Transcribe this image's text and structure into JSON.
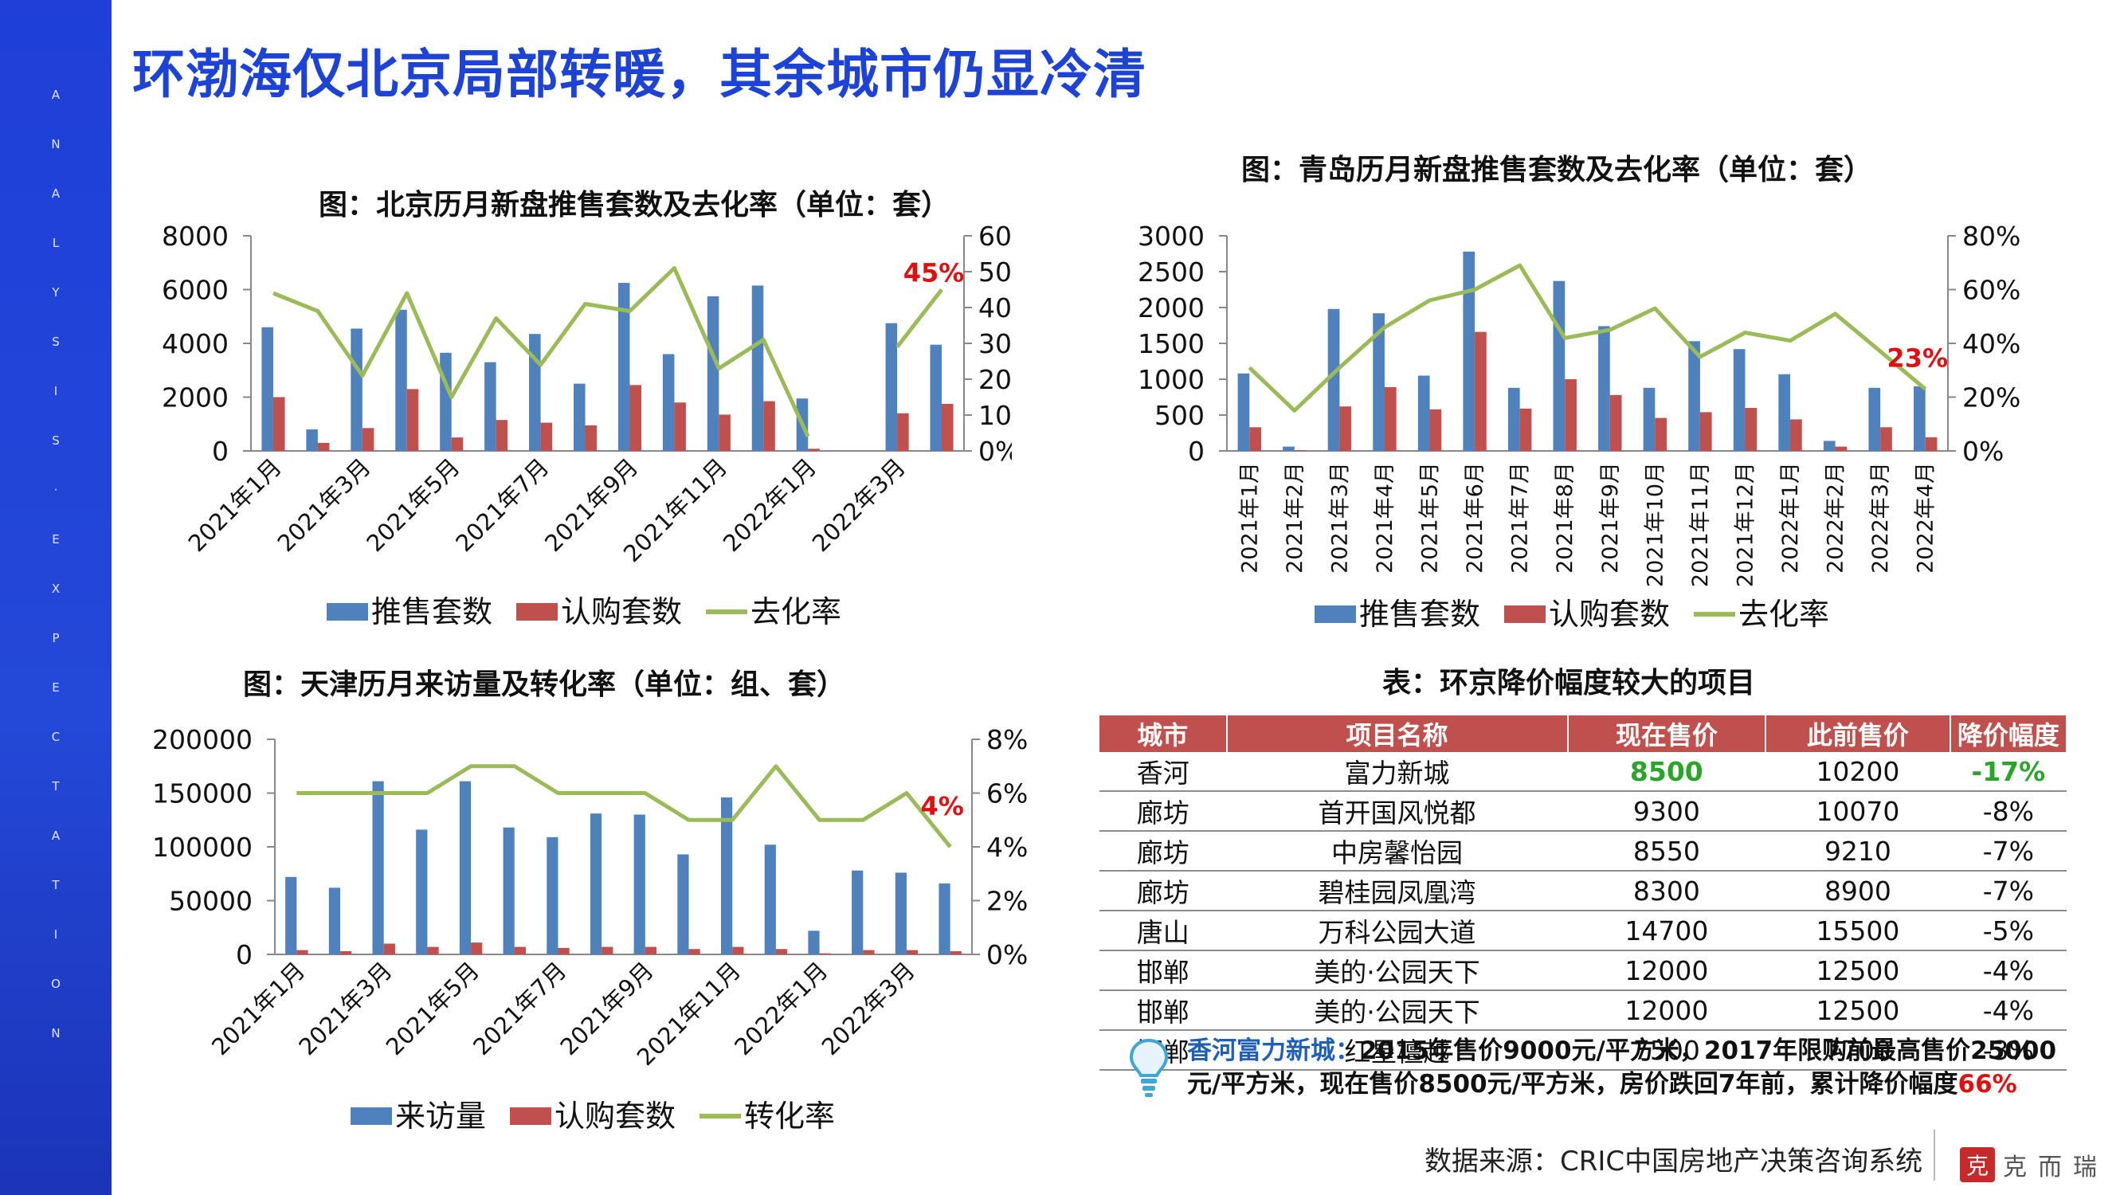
{
  "page": {
    "title": "环渤海仅北京局部转暖，其余城市仍显冷清",
    "side_letters": [
      "A",
      "N",
      "A",
      "L",
      "Y",
      "S",
      "I",
      "S",
      "·",
      "E",
      "X",
      "P",
      "E",
      "C",
      "T",
      "A",
      "T",
      "I",
      "O",
      "N"
    ],
    "source": "数据来源：CRIC中国房地产决策咨询系统",
    "logo_seal": "克",
    "logo_text": "克而瑞"
  },
  "colors": {
    "bar_blue": "#4f81bd",
    "bar_red": "#c0504d",
    "line_green": "#9bbb59",
    "title_blue": "#1d43d6",
    "highlight_red": "#e01010"
  },
  "chart_data": [
    {
      "id": "beijing",
      "type": "bar",
      "title": "图：北京历月新盘推售套数及去化率（单位：套）",
      "categories": [
        "2021年1月",
        "2021年2月",
        "2021年3月",
        "2021年4月",
        "2021年5月",
        "2021年6月",
        "2021年7月",
        "2021年8月",
        "2021年9月",
        "2021年10月",
        "2021年11月",
        "2021年12月",
        "2022年1月",
        "2022年2月",
        "2022年3月",
        "2022年4月"
      ],
      "tick_labels": [
        "2021年1月",
        "",
        "2021年3月",
        "",
        "2021年5月",
        "",
        "2021年7月",
        "",
        "2021年9月",
        "",
        "2021年11月",
        "",
        "2022年1月",
        "",
        "2022年3月",
        ""
      ],
      "series": [
        {
          "name": "推售套数",
          "axis": "left",
          "values": [
            4600,
            800,
            4550,
            5250,
            3650,
            3300,
            4350,
            2500,
            6250,
            3600,
            5750,
            6150,
            1950,
            0,
            4750,
            3950
          ]
        },
        {
          "name": "认购套数",
          "axis": "left",
          "values": [
            2000,
            300,
            850,
            2300,
            500,
            1150,
            1050,
            950,
            2450,
            1800,
            1350,
            1850,
            80,
            0,
            1400,
            1750
          ]
        },
        {
          "name": "去化率",
          "axis": "right",
          "type": "line",
          "values": [
            44,
            39,
            21,
            44,
            15,
            37,
            24,
            41,
            39,
            51,
            23,
            31,
            4,
            null,
            29,
            45
          ]
        }
      ],
      "left_axis": {
        "ylim": [
          0,
          8000
        ],
        "ticks": [
          "0",
          "2000",
          "4000",
          "6000",
          "8000"
        ]
      },
      "right_axis": {
        "ylim": [
          0,
          60
        ],
        "ticks": [
          "0%",
          "10%",
          "20%",
          "30%",
          "40%",
          "50%",
          "60%"
        ]
      },
      "annotation": "45%",
      "legend": [
        "推售套数",
        "认购套数",
        "去化率"
      ]
    },
    {
      "id": "qingdao",
      "type": "bar",
      "title": "图：青岛历月新盘推售套数及去化率（单位：套）",
      "categories": [
        "2021年1月",
        "2021年2月",
        "2021年3月",
        "2021年4月",
        "2021年5月",
        "2021年6月",
        "2021年7月",
        "2021年8月",
        "2021年9月",
        "2021年10月",
        "2021年11月",
        "2021年12月",
        "2022年1月",
        "2022年2月",
        "2022年3月",
        "2022年4月"
      ],
      "tick_labels": [
        "2021年1月",
        "2021年2月",
        "2021年3月",
        "2021年4月",
        "2021年5月",
        "2021年6月",
        "2021年7月",
        "2021年8月",
        "2021年9月",
        "2021年10月",
        "2021年11月",
        "2021年12月",
        "2022年1月",
        "2022年2月",
        "2022年3月",
        "2022年4月"
      ],
      "series": [
        {
          "name": "推售套数",
          "axis": "left",
          "values": [
            1080,
            60,
            1980,
            1920,
            1050,
            2780,
            880,
            2370,
            1740,
            880,
            1530,
            1420,
            1070,
            140,
            880,
            900
          ]
        },
        {
          "name": "认购套数",
          "axis": "left",
          "values": [
            330,
            10,
            620,
            890,
            580,
            1660,
            590,
            1000,
            780,
            460,
            540,
            600,
            440,
            60,
            330,
            190
          ]
        },
        {
          "name": "去化率",
          "axis": "right",
          "type": "line",
          "values": [
            31,
            15,
            31,
            46,
            56,
            60,
            69,
            42,
            45,
            53,
            35,
            44,
            41,
            51,
            37,
            23
          ]
        }
      ],
      "left_axis": {
        "ylim": [
          0,
          3000
        ],
        "ticks": [
          "0",
          "500",
          "1000",
          "1500",
          "2000",
          "2500",
          "3000"
        ]
      },
      "right_axis": {
        "ylim": [
          0,
          80
        ],
        "ticks": [
          "0%",
          "20%",
          "40%",
          "60%",
          "80%"
        ]
      },
      "annotation": "23%",
      "legend": [
        "推售套数",
        "认购套数",
        "去化率"
      ]
    },
    {
      "id": "tianjin",
      "type": "bar",
      "title": "图：天津历月来访量及转化率（单位：组、套）",
      "categories": [
        "2021年1月",
        "2021年2月",
        "2021年3月",
        "2021年4月",
        "2021年5月",
        "2021年6月",
        "2021年7月",
        "2021年8月",
        "2021年9月",
        "2021年10月",
        "2021年11月",
        "2021年12月",
        "2022年1月",
        "2022年2月",
        "2022年3月",
        "2022年4月"
      ],
      "tick_labels": [
        "2021年1月",
        "",
        "2021年3月",
        "",
        "2021年5月",
        "",
        "2021年7月",
        "",
        "2021年9月",
        "",
        "2021年11月",
        "",
        "2022年1月",
        "",
        "2022年3月",
        ""
      ],
      "series": [
        {
          "name": "来访量",
          "axis": "left",
          "values": [
            72000,
            62000,
            161000,
            116000,
            161000,
            118000,
            109000,
            131000,
            130000,
            93000,
            146000,
            102000,
            22000,
            78000,
            76000,
            66000
          ]
        },
        {
          "name": "认购套数",
          "axis": "left",
          "values": [
            4000,
            3000,
            10000,
            7000,
            11000,
            7000,
            6000,
            7000,
            7000,
            5000,
            7000,
            5000,
            1000,
            4000,
            4000,
            3000
          ]
        },
        {
          "name": "转化率",
          "axis": "right",
          "type": "line",
          "values": [
            6,
            6,
            6,
            6,
            7,
            7,
            6,
            6,
            6,
            5,
            5,
            7,
            5,
            5,
            6,
            4
          ]
        }
      ],
      "left_axis": {
        "ylim": [
          0,
          200000
        ],
        "ticks": [
          "0",
          "50000",
          "100000",
          "150000",
          "200000"
        ]
      },
      "right_axis": {
        "ylim": [
          0,
          8
        ],
        "ticks": [
          "0%",
          "2%",
          "4%",
          "6%",
          "8%"
        ]
      },
      "annotation": "4%",
      "legend": [
        "来访量",
        "认购套数",
        "转化率"
      ]
    }
  ],
  "table": {
    "title": "表：环京降价幅度较大的项目",
    "headers": [
      "城市",
      "项目名称",
      "现在售价",
      "此前售价",
      "降价幅度"
    ],
    "rows": [
      {
        "city": "香河",
        "name": "富力新城",
        "now": "8500",
        "before": "10200",
        "drop": "-17%"
      },
      {
        "city": "廊坊",
        "name": "首开国风悦都",
        "now": "9300",
        "before": "10070",
        "drop": "-8%"
      },
      {
        "city": "廊坊",
        "name": "中房馨怡园",
        "now": "8550",
        "before": "9210",
        "drop": "-7%"
      },
      {
        "city": "廊坊",
        "name": "碧桂园凤凰湾",
        "now": "8300",
        "before": "8900",
        "drop": "-7%"
      },
      {
        "city": "唐山",
        "name": "万科公园大道",
        "now": "14700",
        "before": "15500",
        "drop": "-5%"
      },
      {
        "city": "邯郸",
        "name": "美的·公园天下",
        "now": "12000",
        "before": "12500",
        "drop": "-4%"
      },
      {
        "city": "邯郸",
        "name": "美的·公园天下",
        "now": "12000",
        "before": "12500",
        "drop": "-4%"
      },
      {
        "city": "邯郸",
        "name": "红星檀越",
        "now": "7500",
        "before": "7700",
        "drop": "-3%"
      }
    ]
  },
  "note": {
    "label": "香河富力新城：",
    "text": "2015年售价9000元/平方米，2017年限购前最高售价25000元/平方米，现在售价8500元/平方米，房价跌回7年前，累计降价幅度",
    "pct": "66%"
  }
}
